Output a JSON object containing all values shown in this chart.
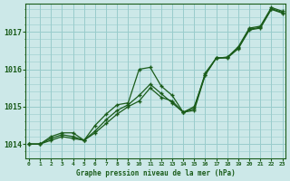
{
  "title": "Graphe pression niveau de la mer (hPa)",
  "bg_color": "#cce8e8",
  "grid_color": "#99cccc",
  "line_color": "#1a5c1a",
  "text_color": "#1a5c1a",
  "hours": [
    0,
    1,
    2,
    3,
    4,
    5,
    6,
    7,
    8,
    9,
    10,
    11,
    12,
    13,
    14,
    15,
    16,
    17,
    18,
    19,
    20,
    21,
    22,
    23
  ],
  "series1": [
    1014.0,
    1014.0,
    1014.1,
    1014.2,
    1014.15,
    1014.1,
    1014.3,
    1014.55,
    1014.8,
    1015.0,
    1015.15,
    1015.5,
    1015.25,
    1015.15,
    1014.85,
    1014.9,
    1015.85,
    1016.3,
    1016.3,
    1016.55,
    1017.05,
    1017.1,
    1017.6,
    1017.5
  ],
  "series2": [
    1014.0,
    1014.0,
    1014.15,
    1014.25,
    1014.2,
    1014.1,
    1014.35,
    1014.65,
    1014.9,
    1015.05,
    1015.3,
    1015.6,
    1015.35,
    1015.1,
    1014.85,
    1014.95,
    1015.9,
    1016.3,
    1016.32,
    1016.57,
    1017.07,
    1017.12,
    1017.62,
    1017.52
  ],
  "series3": [
    1014.0,
    1014.0,
    1014.2,
    1014.3,
    1014.3,
    1014.1,
    1014.5,
    1014.8,
    1015.05,
    1015.1,
    1016.0,
    1016.05,
    1015.55,
    1015.3,
    1014.85,
    1015.0,
    1015.85,
    1016.3,
    1016.32,
    1016.6,
    1017.1,
    1017.15,
    1017.65,
    1017.55
  ],
  "ylim_min": 1013.62,
  "ylim_max": 1017.75,
  "yticks": [
    1014,
    1015,
    1016,
    1017
  ],
  "xlim_min": -0.3,
  "xlim_max": 23.3
}
